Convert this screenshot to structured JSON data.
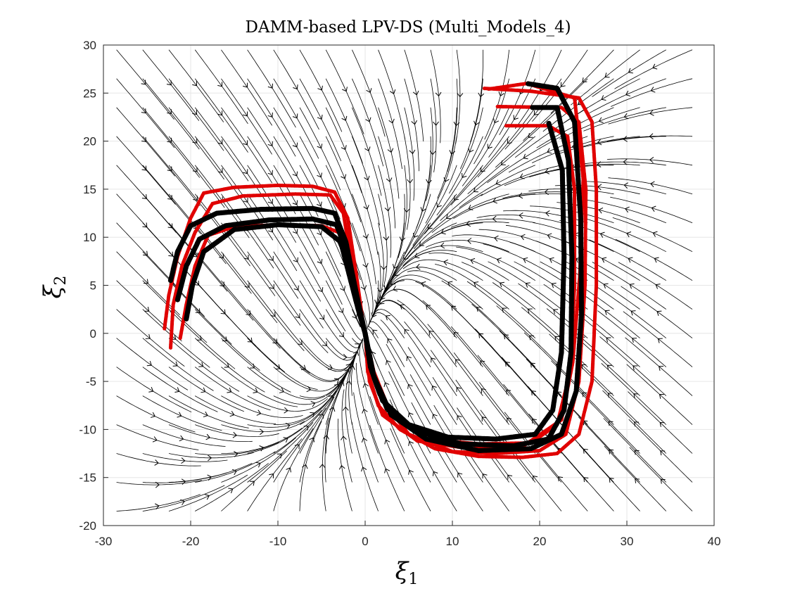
{
  "chart_data": {
    "type": "scatter",
    "title": "DAMM-based LPV-DS (Multi_Models_4)",
    "xlabel": "ξ1",
    "ylabel": "ξ2",
    "xlabel_main": "ξ",
    "xlabel_sub": "1",
    "ylabel_main": "ξ",
    "ylabel_sub": "2",
    "xlim": [
      -30,
      40
    ],
    "ylim": [
      -20,
      30
    ],
    "xticks": [
      -30,
      -20,
      -10,
      0,
      10,
      20,
      30,
      40
    ],
    "yticks": [
      -20,
      -15,
      -10,
      -5,
      0,
      5,
      10,
      15,
      20,
      25,
      30
    ],
    "xtick_labels": [
      "-30",
      "-20",
      "-10",
      "0",
      "10",
      "20",
      "30",
      "40"
    ],
    "ytick_labels": [
      "-20",
      "-15",
      "-10",
      "-5",
      "0",
      "5",
      "10",
      "15",
      "20",
      "25",
      "30"
    ],
    "grid": true,
    "attractor": [
      0,
      0
    ],
    "colors": {
      "streamlines": "#000000",
      "reproduced": "#000000",
      "demonstrations": "#e00000",
      "grid": "#e6e6e6"
    },
    "series": [
      {
        "role": "demonstrations",
        "color": "#e00000",
        "trajectories": [
          [
            [
              -23,
              0.5
            ],
            [
              -22.5,
              4
            ],
            [
              -21.5,
              8
            ],
            [
              -20,
              12
            ],
            [
              -18.5,
              14.6
            ],
            [
              -15,
              15.2
            ],
            [
              -10,
              15.4
            ],
            [
              -6,
              15.3
            ],
            [
              -3.5,
              14.7
            ],
            [
              -2,
              12
            ],
            [
              -1,
              6
            ],
            [
              -0.3,
              1.5
            ],
            [
              0,
              0
            ]
          ],
          [
            [
              -22.3,
              -1.5
            ],
            [
              -22,
              3
            ],
            [
              -21,
              7
            ],
            [
              -19.5,
              10.5
            ],
            [
              -17.5,
              13.5
            ],
            [
              -14,
              14.3
            ],
            [
              -8,
              14.5
            ],
            [
              -4,
              14.4
            ],
            [
              -2.5,
              12.5
            ],
            [
              -1.5,
              7
            ],
            [
              -0.5,
              2
            ],
            [
              0,
              0
            ]
          ],
          [
            [
              -21.2,
              -0.5
            ],
            [
              -20.5,
              3
            ],
            [
              -19.5,
              7
            ],
            [
              -18,
              10.2
            ],
            [
              -15,
              11.1
            ],
            [
              -10,
              11.3
            ],
            [
              -5,
              11.2
            ],
            [
              -3,
              10.5
            ],
            [
              -2,
              7.5
            ],
            [
              -1,
              3
            ],
            [
              0,
              0
            ]
          ],
          [
            [
              0,
              0
            ],
            [
              0.3,
              -4
            ],
            [
              1.5,
              -7.5
            ],
            [
              4,
              -10
            ],
            [
              8,
              -12
            ],
            [
              13,
              -12.8
            ],
            [
              18,
              -12.9
            ],
            [
              22,
              -12.5
            ],
            [
              24.5,
              -10.5
            ],
            [
              26,
              -5
            ],
            [
              26.5,
              5
            ],
            [
              26.5,
              15
            ],
            [
              26,
              22
            ],
            [
              24.5,
              24.5
            ],
            [
              19,
              25.2
            ],
            [
              13.5,
              25.5
            ]
          ],
          [
            [
              0,
              0
            ],
            [
              0.5,
              -3
            ],
            [
              2,
              -7
            ],
            [
              5,
              -10.5
            ],
            [
              10,
              -12.3
            ],
            [
              15,
              -12.5
            ],
            [
              20,
              -12.2
            ],
            [
              23,
              -10.5
            ],
            [
              24.5,
              -5
            ],
            [
              25.2,
              5
            ],
            [
              25.3,
              15
            ],
            [
              24.5,
              22
            ],
            [
              22.5,
              23.5
            ],
            [
              15,
              23.6
            ]
          ],
          [
            [
              0,
              0
            ],
            [
              1,
              -4
            ],
            [
              3,
              -8.5
            ],
            [
              7,
              -11
            ],
            [
              13,
              -11.5
            ],
            [
              19,
              -11.4
            ],
            [
              22,
              -9.5
            ],
            [
              23.5,
              -4
            ],
            [
              24,
              5
            ],
            [
              24,
              15
            ],
            [
              23.2,
              20.5
            ],
            [
              21,
              21.6
            ],
            [
              16,
              21.6
            ]
          ],
          [
            [
              0,
              0
            ],
            [
              0.5,
              -5
            ],
            [
              2,
              -8.5
            ],
            [
              6,
              -11.2
            ],
            [
              12,
              -12
            ],
            [
              18,
              -11.8
            ],
            [
              22.5,
              -9
            ],
            [
              23.8,
              -3
            ],
            [
              24.6,
              6
            ],
            [
              25,
              16
            ],
            [
              24,
              24.5
            ],
            [
              18.5,
              26
            ],
            [
              14,
              25.4
            ]
          ]
        ]
      },
      {
        "role": "reproduced",
        "color": "#000000",
        "trajectories": [
          [
            [
              -22.3,
              5.5
            ],
            [
              -21.5,
              8.5
            ],
            [
              -20,
              11.2
            ],
            [
              -17,
              12.5
            ],
            [
              -12,
              12.9
            ],
            [
              -6,
              13
            ],
            [
              -3.5,
              12.5
            ],
            [
              -2.2,
              9.5
            ],
            [
              -1.2,
              5
            ],
            [
              -0.4,
              1.5
            ],
            [
              0,
              0
            ]
          ],
          [
            [
              -21.5,
              3.5
            ],
            [
              -20.5,
              7
            ],
            [
              -19,
              9.8
            ],
            [
              -16,
              11.2
            ],
            [
              -11,
              11.8
            ],
            [
              -6,
              11.9
            ],
            [
              -3.3,
              11.3
            ],
            [
              -2.1,
              8.5
            ],
            [
              -1.1,
              4.5
            ],
            [
              -0.3,
              1.2
            ],
            [
              0,
              0
            ]
          ],
          [
            [
              -20.5,
              1.5
            ],
            [
              -19.8,
              5
            ],
            [
              -18.5,
              8.5
            ],
            [
              -15,
              10.8
            ],
            [
              -10,
              11.3
            ],
            [
              -5,
              11.1
            ],
            [
              -2.8,
              9.5
            ],
            [
              -1.8,
              6
            ],
            [
              -0.8,
              2.5
            ],
            [
              0,
              0
            ]
          ],
          [
            [
              0,
              0
            ],
            [
              0.6,
              -3.5
            ],
            [
              2,
              -7
            ],
            [
              5,
              -9.5
            ],
            [
              9.5,
              -10.8
            ],
            [
              15,
              -11
            ],
            [
              19.5,
              -10.5
            ],
            [
              21.5,
              -8
            ],
            [
              22.5,
              -2
            ],
            [
              22.8,
              8
            ],
            [
              22.6,
              17
            ],
            [
              21,
              22
            ]
          ],
          [
            [
              0,
              0
            ],
            [
              0.8,
              -4
            ],
            [
              2.5,
              -7.8
            ],
            [
              6,
              -10.2
            ],
            [
              11,
              -11.5
            ],
            [
              17,
              -11.7
            ],
            [
              21,
              -11
            ],
            [
              22.8,
              -8
            ],
            [
              23.6,
              -2
            ],
            [
              23.7,
              8
            ],
            [
              23.3,
              18
            ],
            [
              22,
              23.5
            ],
            [
              19,
              23.5
            ]
          ],
          [
            [
              0,
              0
            ],
            [
              1,
              -4.5
            ],
            [
              3,
              -8.5
            ],
            [
              7,
              -11
            ],
            [
              13,
              -12.2
            ],
            [
              19,
              -12
            ],
            [
              22.5,
              -10.5
            ],
            [
              24.2,
              -6
            ],
            [
              24.8,
              2
            ],
            [
              24.7,
              12
            ],
            [
              24,
              22
            ],
            [
              22,
              25.5
            ],
            [
              18.5,
              26
            ]
          ]
        ]
      }
    ]
  }
}
